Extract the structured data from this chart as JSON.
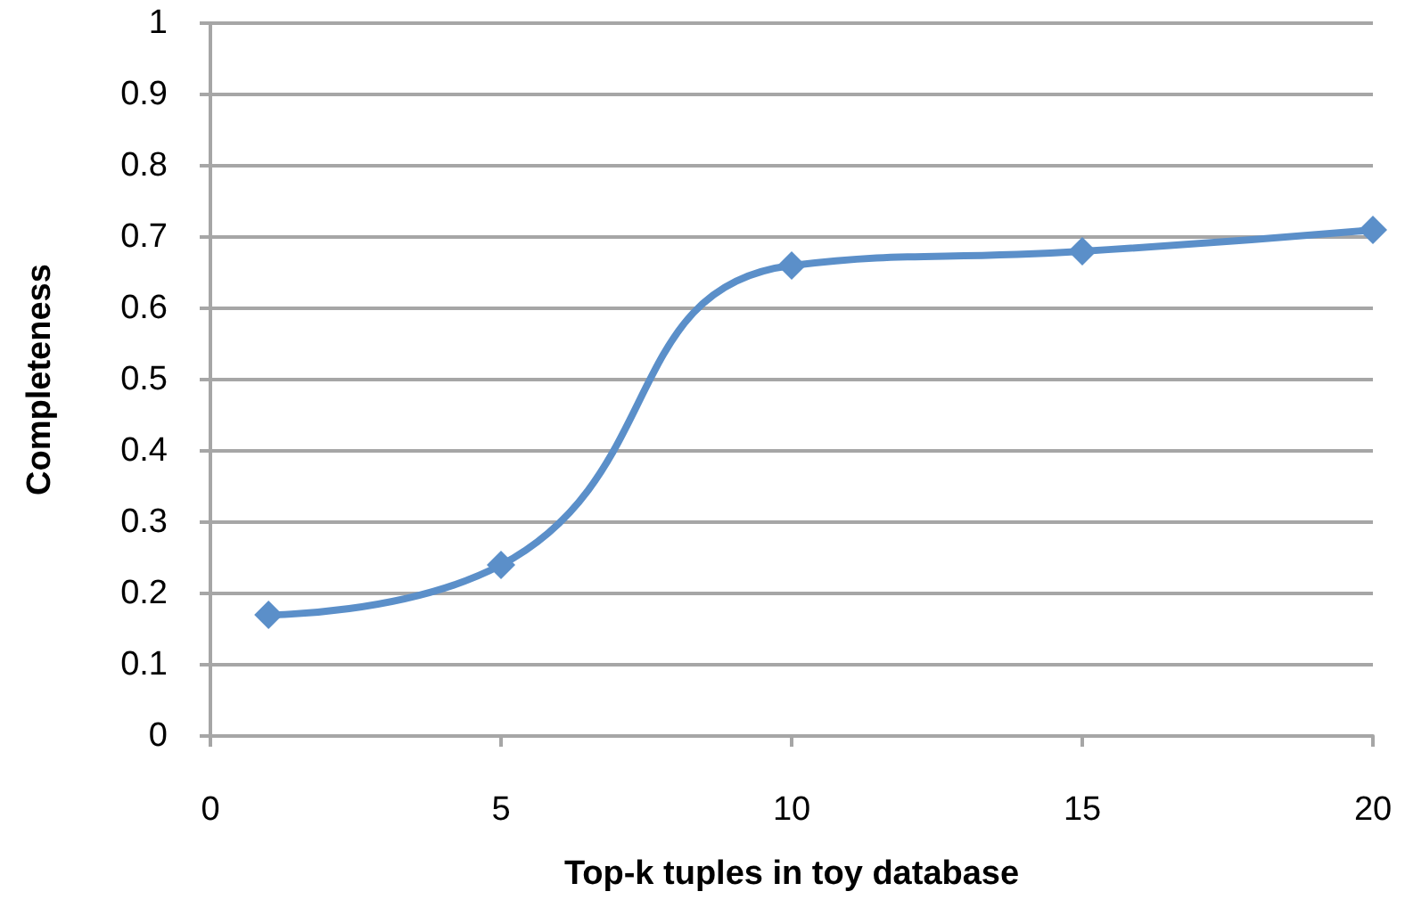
{
  "chart_data": {
    "type": "line",
    "xlabel": "Top-k tuples in toy database",
    "ylabel": "Completeness",
    "x": [
      1,
      5,
      10,
      15,
      20
    ],
    "series": [
      {
        "color": "#5b8fc9",
        "values": [
          0.17,
          0.24,
          0.66,
          0.68,
          0.71
        ]
      }
    ],
    "xlim": [
      0,
      20
    ],
    "xticks": [
      0,
      5,
      10,
      15,
      20
    ],
    "ylim": [
      0,
      1
    ],
    "yticks": [
      0,
      0.1,
      0.2,
      0.3,
      0.4,
      0.5,
      0.6,
      0.7,
      0.8,
      0.9,
      1
    ],
    "grid": "y",
    "marker": "diamond",
    "line_style": "solid"
  }
}
